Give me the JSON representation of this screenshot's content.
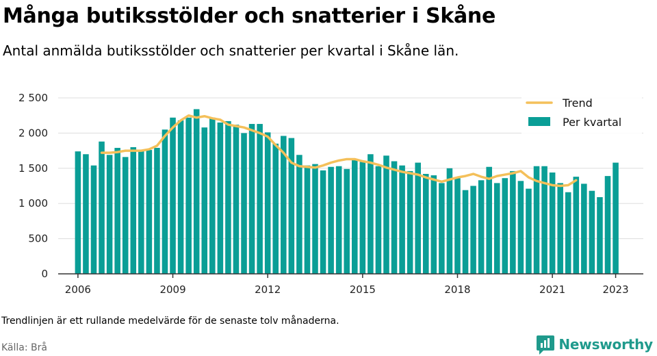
{
  "title": "Många butiksstölder och snatterier i Skåne",
  "subtitle": "Antal anmälda butiksstölder och snatterier per kvartal i Skåne län.",
  "note": "Trendlinjen är ett rullande medelvärde för de senaste tolv månaderna.",
  "source": "Källa: Brå",
  "logo_text": "Newsworthy",
  "colors": {
    "bar": "#0a9e96",
    "trend": "#f4c05a",
    "grid": "#dddddd",
    "axis": "#333333",
    "logo": "#1f9a8c"
  },
  "chart_data": {
    "type": "bar",
    "x_ticks": [
      "2006",
      "2009",
      "2012",
      "2015",
      "2018",
      "2021",
      "2023"
    ],
    "y_ticks": [
      "0",
      "500",
      "1 000",
      "1 500",
      "2 000",
      "2 500"
    ],
    "ylim": [
      0,
      2500
    ],
    "grid": true,
    "legend_position": "top-right",
    "x_range": [
      2005.375,
      2023.875
    ],
    "first_period": [
      2006,
      1
    ],
    "series": [
      {
        "name": "Per kvartal",
        "kind": "bar",
        "values": [
          1740,
          1700,
          1540,
          1880,
          1690,
          1790,
          1660,
          1800,
          1760,
          1760,
          1790,
          2050,
          2220,
          2180,
          2220,
          2340,
          2080,
          2220,
          2150,
          2170,
          2120,
          2000,
          2130,
          2130,
          2010,
          1850,
          1960,
          1930,
          1690,
          1540,
          1560,
          1470,
          1520,
          1530,
          1490,
          1620,
          1590,
          1700,
          1530,
          1680,
          1600,
          1540,
          1460,
          1580,
          1420,
          1400,
          1290,
          1500,
          1360,
          1190,
          1250,
          1330,
          1520,
          1290,
          1360,
          1460,
          1320,
          1210,
          1530,
          1530,
          1440,
          1290,
          1160,
          1380,
          1280,
          1180,
          1090,
          1390,
          1580
        ]
      },
      {
        "name": "Trend",
        "kind": "line",
        "start_index": 3,
        "values": [
          1720,
          1720,
          1730,
          1750,
          1750,
          1750,
          1770,
          1820,
          1960,
          2080,
          2180,
          2250,
          2220,
          2240,
          2210,
          2190,
          2120,
          2100,
          2080,
          2040,
          2000,
          1950,
          1830,
          1720,
          1580,
          1530,
          1520,
          1510,
          1540,
          1580,
          1610,
          1630,
          1630,
          1600,
          1580,
          1550,
          1510,
          1480,
          1450,
          1430,
          1410,
          1370,
          1340,
          1310,
          1340,
          1370,
          1390,
          1420,
          1380,
          1350,
          1390,
          1410,
          1430,
          1460,
          1370,
          1320,
          1290,
          1260,
          1250,
          1260,
          1330
        ]
      }
    ]
  }
}
